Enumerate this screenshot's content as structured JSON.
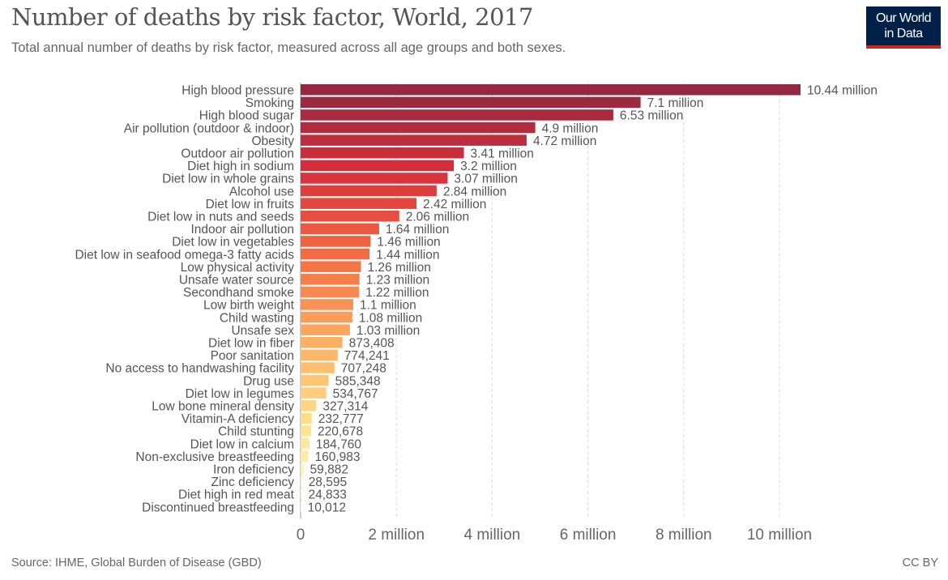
{
  "header": {
    "title": "Number of deaths by risk factor, World, 2017",
    "subtitle": "Total annual number of deaths by risk factor, measured across all age groups and both sexes.",
    "logo_line1": "Our World",
    "logo_line2": "in Data"
  },
  "footer": {
    "source": "Source: IHME, Global Burden of Disease (GBD)",
    "license": "CC BY"
  },
  "colors": {
    "palette": [
      "#932842",
      "#d7303a",
      "#f46d43",
      "#fdae61",
      "#fee08b",
      "#ffffcc"
    ]
  },
  "chart_data": {
    "type": "bar",
    "orientation": "horizontal",
    "xlim": [
      0,
      10500000
    ],
    "grid": true,
    "xticks": [
      0,
      2000000,
      4000000,
      6000000,
      8000000,
      10000000
    ],
    "xtick_labels": [
      "0",
      "2 million",
      "4 million",
      "6 million",
      "8 million",
      "10 million"
    ],
    "categories": [
      "High blood pressure",
      "Smoking",
      "High blood sugar",
      "Air pollution (outdoor & indoor)",
      "Obesity",
      "Outdoor air pollution",
      "Diet high in sodium",
      "Diet low in whole grains",
      "Alcohol use",
      "Diet low in fruits",
      "Diet low in nuts and seeds",
      "Indoor air pollution",
      "Diet low in vegetables",
      "Diet low in seafood omega-3 fatty acids",
      "Low physical activity",
      "Unsafe water source",
      "Secondhand smoke",
      "Low birth weight",
      "Child wasting",
      "Unsafe sex",
      "Diet low in fiber",
      "Poor sanitation",
      "No access to handwashing facility",
      "Drug use",
      "Diet low in legumes",
      "Low bone mineral density",
      "Vitamin-A deficiency",
      "Child stunting",
      "Diet low in calcium",
      "Non-exclusive breastfeeding",
      "Iron deficiency",
      "Zinc deficiency",
      "Diet high in red meat",
      "Discontinued breastfeeding"
    ],
    "values": [
      10440000,
      7100000,
      6530000,
      4900000,
      4720000,
      3410000,
      3200000,
      3070000,
      2840000,
      2420000,
      2060000,
      1640000,
      1460000,
      1440000,
      1260000,
      1230000,
      1220000,
      1100000,
      1080000,
      1030000,
      873408,
      774241,
      707248,
      585348,
      534767,
      327314,
      232777,
      220678,
      184760,
      160983,
      59882,
      28595,
      24833,
      10012
    ],
    "value_labels": [
      "10.44 million",
      "7.1 million",
      "6.53 million",
      "4.9 million",
      "4.72 million",
      "3.41 million",
      "3.2 million",
      "3.07 million",
      "2.84 million",
      "2.42 million",
      "2.06 million",
      "1.64 million",
      "1.46 million",
      "1.44 million",
      "1.26 million",
      "1.23 million",
      "1.22 million",
      "1.1 million",
      "1.08 million",
      "1.03 million",
      "873,408",
      "774,241",
      "707,248",
      "585,348",
      "534,767",
      "327,314",
      "232,777",
      "220,678",
      "184,760",
      "160,983",
      "59,882",
      "28,595",
      "24,833",
      "10,012"
    ]
  }
}
